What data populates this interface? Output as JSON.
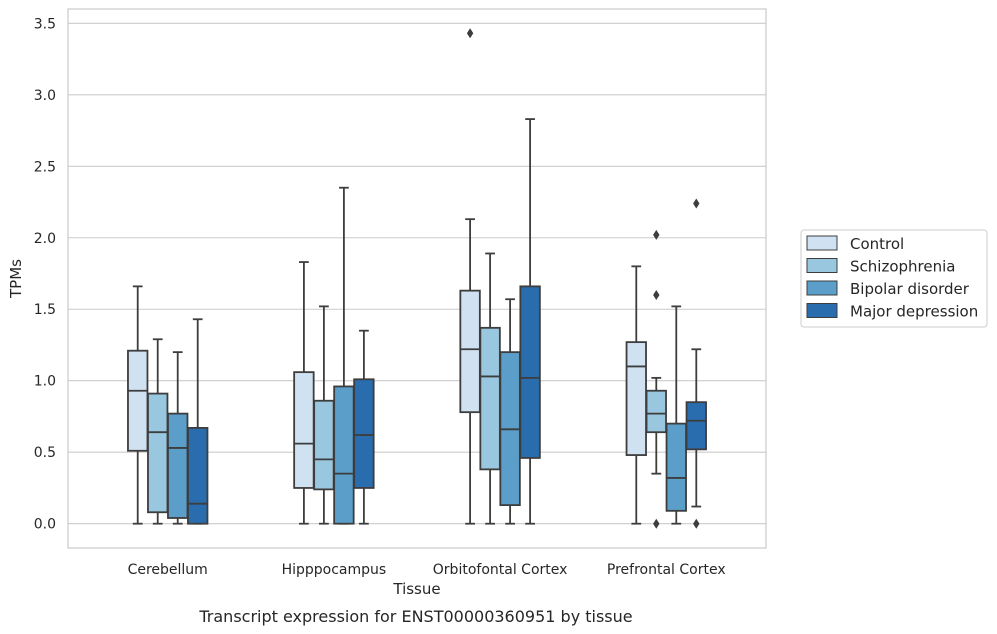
{
  "chart_data": {
    "type": "boxplot",
    "caption": "Transcript expression for ENST00000360951 by tissue",
    "xlabel": "Tissue",
    "ylabel": "TPMs",
    "ylim": [
      -0.17,
      3.6
    ],
    "yticks": [
      "0.0",
      "0.5",
      "1.0",
      "1.5",
      "2.0",
      "2.5",
      "3.0",
      "3.5"
    ],
    "grid": "horizontal",
    "legend_position": "right",
    "categories": [
      "Cerebellum",
      "Hipppocampus",
      "Orbitofontal Cortex",
      "Prefrontal Cortex"
    ],
    "series": [
      {
        "name": "Control",
        "color": "#d0e2f2",
        "boxes": [
          {
            "whislo": 0.0,
            "q1": 0.51,
            "med": 0.93,
            "q3": 1.21,
            "whishi": 1.66,
            "fliers": []
          },
          {
            "whislo": 0.0,
            "q1": 0.25,
            "med": 0.56,
            "q3": 1.06,
            "whishi": 1.83,
            "fliers": []
          },
          {
            "whislo": 0.0,
            "q1": 0.78,
            "med": 1.22,
            "q3": 1.63,
            "whishi": 2.13,
            "fliers": [
              3.43
            ]
          },
          {
            "whislo": 0.0,
            "q1": 0.48,
            "med": 1.1,
            "q3": 1.27,
            "whishi": 1.8,
            "fliers": []
          }
        ]
      },
      {
        "name": "Schizophrenia",
        "color": "#9ac7e0",
        "boxes": [
          {
            "whislo": 0.0,
            "q1": 0.08,
            "med": 0.64,
            "q3": 0.91,
            "whishi": 1.29,
            "fliers": []
          },
          {
            "whislo": 0.0,
            "q1": 0.24,
            "med": 0.45,
            "q3": 0.86,
            "whishi": 1.52,
            "fliers": []
          },
          {
            "whislo": 0.0,
            "q1": 0.38,
            "med": 1.03,
            "q3": 1.37,
            "whishi": 1.89,
            "fliers": []
          },
          {
            "whislo": 0.35,
            "q1": 0.64,
            "med": 0.77,
            "q3": 0.93,
            "whishi": 1.02,
            "fliers": [
              2.02,
              1.6,
              0.0
            ]
          }
        ]
      },
      {
        "name": "Bipolar disorder",
        "color": "#5a9ec9",
        "boxes": [
          {
            "whislo": 0.0,
            "q1": 0.04,
            "med": 0.53,
            "q3": 0.77,
            "whishi": 1.2,
            "fliers": []
          },
          {
            "whislo": 0.0,
            "q1": 0.0,
            "med": 0.35,
            "q3": 0.96,
            "whishi": 2.35,
            "fliers": []
          },
          {
            "whislo": 0.0,
            "q1": 0.13,
            "med": 0.66,
            "q3": 1.2,
            "whishi": 1.57,
            "fliers": []
          },
          {
            "whislo": 0.0,
            "q1": 0.09,
            "med": 0.32,
            "q3": 0.7,
            "whishi": 1.52,
            "fliers": []
          }
        ]
      },
      {
        "name": "Major depression",
        "color": "#2a6dae",
        "boxes": [
          {
            "whislo": 0.0,
            "q1": 0.0,
            "med": 0.14,
            "q3": 0.67,
            "whishi": 1.43,
            "fliers": []
          },
          {
            "whislo": 0.0,
            "q1": 0.25,
            "med": 0.62,
            "q3": 1.01,
            "whishi": 1.35,
            "fliers": []
          },
          {
            "whislo": 0.0,
            "q1": 0.46,
            "med": 1.02,
            "q3": 1.66,
            "whishi": 2.83,
            "fliers": []
          },
          {
            "whislo": 0.12,
            "q1": 0.52,
            "med": 0.72,
            "q3": 0.85,
            "whishi": 1.22,
            "fliers": [
              2.24,
              0.0
            ]
          }
        ]
      }
    ]
  }
}
